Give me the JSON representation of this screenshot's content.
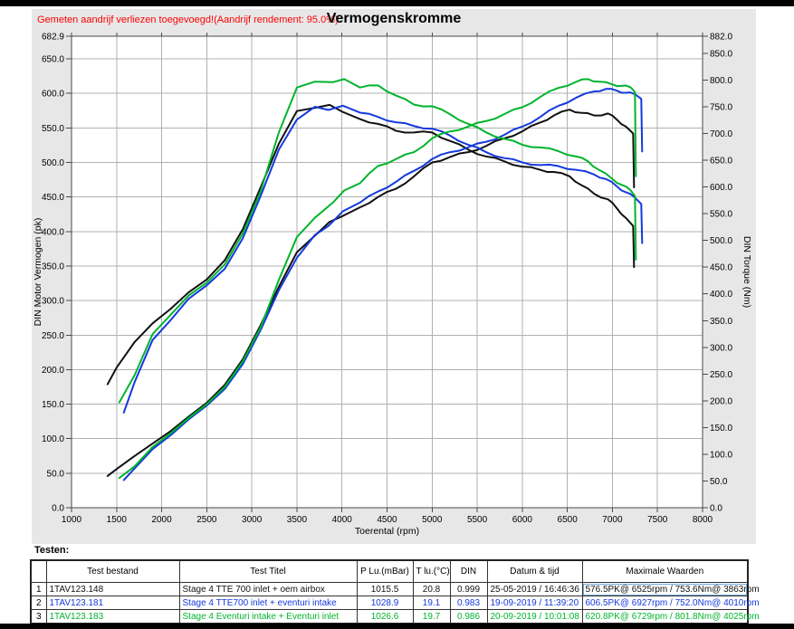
{
  "header": {
    "annotation": "Gemeten aandrijf verliezen toegevoegd!(Aandrijf rendement: 95.0%)",
    "title": "Vermogenskromme"
  },
  "colors": {
    "run1": "#111111",
    "run2": "#1439dd",
    "run3": "#00b42d",
    "grid": "#b0b0b0",
    "plot_border": "#4a4a4a",
    "panel_bg": "#e7e7e7",
    "annotation_red": "#ff0000"
  },
  "chart_data": {
    "type": "line",
    "title": "Vermogenskromme",
    "xlabel": "Toerental (rpm)",
    "ylabel_left": "DIN Motor Vermogen (pk)",
    "ylabel_right": "DIN Torque (Nm)",
    "xlim": [
      1000,
      8000
    ],
    "ylim_left": [
      0,
      682.9
    ],
    "ylim_right": [
      0,
      882.0
    ],
    "grid": true,
    "legend_position": "none",
    "x_ticks": [
      1000,
      1500,
      2000,
      2500,
      3000,
      3500,
      4000,
      4500,
      5000,
      5500,
      6000,
      6500,
      7000,
      7500,
      8000
    ],
    "y_left_ticks": [
      682.9,
      650,
      600,
      550,
      500,
      450,
      400,
      350,
      300,
      250,
      200,
      150,
      100,
      50,
      0
    ],
    "y_right_ticks": [
      882,
      850,
      800,
      750,
      700,
      650,
      600,
      550,
      500,
      450,
      400,
      350,
      300,
      250,
      200,
      150,
      100,
      50,
      0
    ],
    "series": [
      {
        "name": "Stage 4 TTE 700  inlet + oem airbox",
        "color": "#111111",
        "max_label": "576.5PK@ 6525rpm / 753.6Nm@ 3863rpm",
        "power_pk": [
          [
            1400,
            46
          ],
          [
            1500,
            56
          ],
          [
            1700,
            75
          ],
          [
            1900,
            93
          ],
          [
            2100,
            111
          ],
          [
            2300,
            132
          ],
          [
            2500,
            152
          ],
          [
            2700,
            178
          ],
          [
            2900,
            215
          ],
          [
            3100,
            265
          ],
          [
            3300,
            320
          ],
          [
            3500,
            370
          ],
          [
            3700,
            394
          ],
          [
            3863,
            414
          ],
          [
            4000,
            422
          ],
          [
            4200,
            435
          ],
          [
            4400,
            450
          ],
          [
            4600,
            462
          ],
          [
            4800,
            480
          ],
          [
            5000,
            500
          ],
          [
            5200,
            508
          ],
          [
            5400,
            515
          ],
          [
            5600,
            524
          ],
          [
            5800,
            535
          ],
          [
            6000,
            545
          ],
          [
            6200,
            558
          ],
          [
            6350,
            568
          ],
          [
            6525,
            576.5
          ],
          [
            6650,
            572
          ],
          [
            6800,
            568
          ],
          [
            6950,
            571
          ],
          [
            7050,
            562
          ],
          [
            7150,
            552
          ],
          [
            7230,
            542
          ],
          [
            7240,
            464
          ]
        ],
        "torque_nm": [
          [
            1400,
            231
          ],
          [
            1500,
            262
          ],
          [
            1700,
            310
          ],
          [
            1900,
            345
          ],
          [
            2100,
            372
          ],
          [
            2300,
            403
          ],
          [
            2500,
            427
          ],
          [
            2700,
            463
          ],
          [
            2900,
            521
          ],
          [
            3100,
            600
          ],
          [
            3300,
            681
          ],
          [
            3500,
            742
          ],
          [
            3700,
            748
          ],
          [
            3863,
            753.6
          ],
          [
            4000,
            741
          ],
          [
            4200,
            727
          ],
          [
            4400,
            718
          ],
          [
            4600,
            705
          ],
          [
            4800,
            702
          ],
          [
            5000,
            702
          ],
          [
            5200,
            686
          ],
          [
            5400,
            670
          ],
          [
            5600,
            657
          ],
          [
            5800,
            648
          ],
          [
            6000,
            638
          ],
          [
            6200,
            632
          ],
          [
            6350,
            628
          ],
          [
            6525,
            620
          ],
          [
            6650,
            604
          ],
          [
            6800,
            587
          ],
          [
            6950,
            577
          ],
          [
            7050,
            560
          ],
          [
            7150,
            542
          ],
          [
            7230,
            527
          ],
          [
            7240,
            450
          ]
        ]
      },
      {
        "name": "Stage 4 TTE700 inlet + eventuri intake",
        "color": "#1439dd",
        "max_label": "606.5PK@ 6927rpm / 752.0Nm@ 4010rpm",
        "power_pk": [
          [
            1580,
            40
          ],
          [
            1700,
            57
          ],
          [
            1900,
            85
          ],
          [
            2100,
            105
          ],
          [
            2300,
            128
          ],
          [
            2500,
            148
          ],
          [
            2700,
            172
          ],
          [
            2900,
            208
          ],
          [
            3100,
            258
          ],
          [
            3300,
            315
          ],
          [
            3500,
            362
          ],
          [
            3700,
            395
          ],
          [
            3850,
            408
          ],
          [
            4010,
            429.4
          ],
          [
            4200,
            442
          ],
          [
            4400,
            458
          ],
          [
            4600,
            472
          ],
          [
            4800,
            488
          ],
          [
            5000,
            505
          ],
          [
            5200,
            515
          ],
          [
            5400,
            522
          ],
          [
            5600,
            530
          ],
          [
            5800,
            540
          ],
          [
            6000,
            552
          ],
          [
            6200,
            566
          ],
          [
            6400,
            582
          ],
          [
            6600,
            594
          ],
          [
            6800,
            603
          ],
          [
            6927,
            606.5
          ],
          [
            7050,
            604
          ],
          [
            7150,
            601
          ],
          [
            7250,
            599
          ],
          [
            7320,
            592
          ],
          [
            7330,
            516
          ]
        ],
        "torque_nm": [
          [
            1580,
            178
          ],
          [
            1700,
            235
          ],
          [
            1900,
            314
          ],
          [
            2100,
            351
          ],
          [
            2300,
            391
          ],
          [
            2500,
            416
          ],
          [
            2700,
            447
          ],
          [
            2900,
            504
          ],
          [
            3100,
            584
          ],
          [
            3300,
            670
          ],
          [
            3500,
            726
          ],
          [
            3700,
            750
          ],
          [
            3850,
            744
          ],
          [
            4010,
            752.0
          ],
          [
            4200,
            739
          ],
          [
            4400,
            731
          ],
          [
            4600,
            721
          ],
          [
            4800,
            714
          ],
          [
            5000,
            709
          ],
          [
            5200,
            696
          ],
          [
            5400,
            679
          ],
          [
            5600,
            665
          ],
          [
            5800,
            654
          ],
          [
            6000,
            646
          ],
          [
            6200,
            641
          ],
          [
            6400,
            639
          ],
          [
            6600,
            632
          ],
          [
            6800,
            623
          ],
          [
            6927,
            615
          ],
          [
            7050,
            601
          ],
          [
            7150,
            590
          ],
          [
            7250,
            580
          ],
          [
            7320,
            568
          ],
          [
            7330,
            495
          ]
        ]
      },
      {
        "name": "Stage 4 Eventuri intake + Eventuri inlet",
        "color": "#00b42d",
        "max_label": "620.8PK@ 6729rpm / 801.8Nm@ 4025rpm",
        "power_pk": [
          [
            1530,
            43
          ],
          [
            1700,
            60
          ],
          [
            1900,
            88
          ],
          [
            2100,
            108
          ],
          [
            2300,
            130
          ],
          [
            2500,
            150
          ],
          [
            2700,
            175
          ],
          [
            2900,
            212
          ],
          [
            3100,
            262
          ],
          [
            3300,
            330
          ],
          [
            3500,
            392
          ],
          [
            3700,
            420
          ],
          [
            3900,
            442
          ],
          [
            4025,
            459.5
          ],
          [
            4200,
            470
          ],
          [
            4400,
            495
          ],
          [
            4600,
            505
          ],
          [
            4800,
            515
          ],
          [
            5000,
            535
          ],
          [
            5200,
            545
          ],
          [
            5400,
            552
          ],
          [
            5600,
            560
          ],
          [
            5800,
            570
          ],
          [
            6000,
            580
          ],
          [
            6200,
            595
          ],
          [
            6400,
            608
          ],
          [
            6600,
            617
          ],
          [
            6729,
            620.8
          ],
          [
            6850,
            617
          ],
          [
            7000,
            613
          ],
          [
            7100,
            611
          ],
          [
            7200,
            609
          ],
          [
            7250,
            602
          ],
          [
            7260,
            480
          ]
        ],
        "torque_nm": [
          [
            1530,
            197
          ],
          [
            1700,
            248
          ],
          [
            1900,
            325
          ],
          [
            2100,
            361
          ],
          [
            2300,
            397
          ],
          [
            2500,
            421
          ],
          [
            2700,
            455
          ],
          [
            2900,
            513
          ],
          [
            3100,
            593
          ],
          [
            3300,
            702
          ],
          [
            3500,
            786
          ],
          [
            3700,
            797
          ],
          [
            3900,
            796
          ],
          [
            4025,
            801.8
          ],
          [
            4200,
            786
          ],
          [
            4400,
            790
          ],
          [
            4600,
            771
          ],
          [
            4800,
            754
          ],
          [
            5000,
            751
          ],
          [
            5200,
            736
          ],
          [
            5400,
            718
          ],
          [
            5600,
            702
          ],
          [
            5800,
            690
          ],
          [
            6000,
            679
          ],
          [
            6200,
            674
          ],
          [
            6400,
            667
          ],
          [
            6600,
            657
          ],
          [
            6729,
            648
          ],
          [
            6850,
            632
          ],
          [
            7000,
            615
          ],
          [
            7100,
            604
          ],
          [
            7200,
            594
          ],
          [
            7250,
            583
          ],
          [
            7260,
            464
          ]
        ]
      }
    ]
  },
  "table": {
    "label": "Testen:",
    "headers": [
      "",
      "Test bestand",
      "Test Titel",
      "P Lu.(mBar)",
      "T lu.(°C)",
      "DIN",
      "Datum & tijd",
      "Maximale Waarden"
    ],
    "rows": [
      {
        "num": "1",
        "bestand": "1TAV123.148",
        "titel": "Stage 4 TTE 700  inlet + oem airbox",
        "plu": "1015.5",
        "tlu": "20.8",
        "din": "0.999",
        "datum": "25-05-2019 / 16:46:36",
        "max": "576.5PK@ 6525rpm / 753.6Nm@ 3863rpm",
        "color": "#111111"
      },
      {
        "num": "2",
        "bestand": "1TAV123.181",
        "titel": "Stage 4 TTE700 inlet + eventuri intake",
        "plu": "1028.9",
        "tlu": "19.1",
        "din": "0.983",
        "datum": "19-09-2019 / 11:39:20",
        "max": "606.5PK@ 6927rpm / 752.0Nm@ 4010rpm",
        "color": "#1439dd"
      },
      {
        "num": "3",
        "bestand": "1TAV123.183",
        "titel": "Stage 4 Eventuri intake + Eventuri inlet",
        "plu": "1026.6",
        "tlu": "19.7",
        "din": "0.986",
        "datum": "20-09-2019 / 10:01:08",
        "max": "620.8PK@ 6729rpm / 801.8Nm@ 4025rpm",
        "color": "#00b42d"
      }
    ]
  }
}
